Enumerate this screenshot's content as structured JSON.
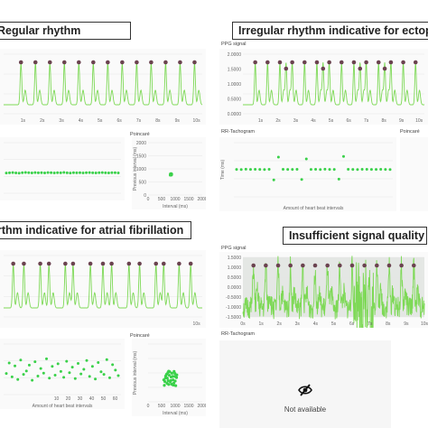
{
  "panels": {
    "q1": {
      "title": "Regular rhythm",
      "poincare_label": "Poincaré"
    },
    "q2": {
      "title": "Irregular rhythm indicative for ectop",
      "ppg_label": "PPG signal",
      "rr_label": "RR-Tachogram",
      "poincare_label": "Poincaré"
    },
    "q3": {
      "title": "rthm indicative for atrial fibrillation",
      "poincare_label": "Poincaré"
    },
    "q4": {
      "title": "Insufficient signal quality",
      "ppg_label": "PPG signal",
      "rr_label": "RR-Tachogram",
      "na_text": "Not available"
    }
  },
  "colors": {
    "signal": "#7ed957",
    "signal_dark": "#3fae3a",
    "marker": "#6b4350",
    "point": "#3ad14a",
    "panel_bg": "#fafafa",
    "noisy_bg": "#e4e7e4"
  },
  "icons": {
    "not_available": "eye-slash-icon"
  },
  "chart_data": [
    {
      "type": "line",
      "panel": "q1",
      "role": "ppg",
      "x_ticks": [
        "1s",
        "2s",
        "3s",
        "4s",
        "5s",
        "6s",
        "7s",
        "8s",
        "9s",
        "10s"
      ],
      "y_ticks": [
        "",
        "",
        "",
        ""
      ],
      "beat_times": [
        0.9,
        1.65,
        2.4,
        3.15,
        3.9,
        4.65,
        5.4,
        6.15,
        6.9,
        7.65,
        8.4,
        9.15,
        9.9
      ],
      "xlim": [
        0,
        10.3
      ]
    },
    {
      "type": "scatter",
      "panel": "q1",
      "role": "rr",
      "x_ticks": [],
      "y_ticks": [],
      "values": [
        740,
        745,
        750,
        742,
        738,
        748,
        752,
        746,
        741,
        749,
        744,
        747,
        743,
        750,
        746,
        742,
        748,
        745,
        751,
        744,
        739,
        747,
        745,
        748,
        743,
        746,
        750,
        744,
        742,
        747,
        749,
        745,
        741,
        748,
        746,
        743
      ],
      "ylim": [
        300,
        1400
      ]
    },
    {
      "type": "scatter",
      "panel": "q1",
      "role": "poincare",
      "x_ticks": [
        "0",
        "500",
        "1000",
        "1500",
        "2000"
      ],
      "y_ticks": [
        "2000",
        "1500",
        "1000",
        "500",
        "0"
      ],
      "xlabel": "Interval (ms)",
      "ylabel": "Previous interval (ms)",
      "points": [
        [
          820,
          760
        ],
        [
          840,
          790
        ],
        [
          860,
          770
        ],
        [
          830,
          810
        ],
        [
          850,
          780
        ],
        [
          870,
          800
        ],
        [
          845,
          760
        ],
        [
          825,
          795
        ],
        [
          855,
          815
        ],
        [
          865,
          775
        ],
        [
          835,
          770
        ],
        [
          850,
          805
        ]
      ],
      "xlim": [
        0,
        2000
      ],
      "ylim": [
        0,
        2000
      ]
    },
    {
      "type": "line",
      "panel": "q2",
      "role": "ppg",
      "x_ticks": [
        "1s",
        "2s",
        "3s",
        "4s",
        "5s",
        "6s",
        "7s",
        "8s",
        "9s",
        "10s"
      ],
      "y_ticks": [
        "2.0000",
        "1.5000",
        "1.0000",
        "0.5000",
        "0.0000"
      ],
      "beat_times": [
        0.7,
        1.4,
        2.1,
        2.8,
        3.5,
        4.2,
        4.9,
        5.6,
        6.3,
        7.0,
        7.7,
        8.4,
        9.1,
        9.8
      ],
      "ectopic_times": [
        2.45,
        4.55,
        6.65,
        8.05
      ],
      "xlim": [
        0,
        10.3
      ]
    },
    {
      "type": "scatter",
      "panel": "q2",
      "role": "rr",
      "x_ticks": [],
      "y_ticks": [
        "",
        "",
        "",
        ""
      ],
      "xlabel": "Amount of heart beat intervals",
      "ylabel": "Time (ms)",
      "values": [
        760,
        755,
        765,
        758,
        762,
        760,
        757,
        764,
        470,
        1100,
        762,
        758,
        760,
        763,
        480,
        1050,
        759,
        761,
        757,
        765,
        760,
        758,
        490,
        1120,
        762,
        760,
        756,
        764,
        761,
        759,
        758,
        763,
        760,
        757
      ],
      "ylim": [
        0,
        1500
      ]
    },
    {
      "type": "line",
      "panel": "q3",
      "role": "ppg",
      "x_ticks": [
        "",
        "",
        "",
        "",
        "",
        "",
        "",
        "",
        "",
        "10s"
      ],
      "y_ticks": [
        "",
        "",
        "",
        ""
      ],
      "beat_times": [
        0.5,
        1.05,
        1.9,
        2.35,
        3.2,
        3.6,
        4.5,
        5.15,
        5.6,
        6.5,
        7.05,
        7.9,
        8.3,
        9.1,
        9.7
      ],
      "xlim": [
        0,
        10.3
      ]
    },
    {
      "type": "scatter",
      "panel": "q3",
      "role": "rr",
      "x_ticks": [
        "",
        "",
        "",
        "",
        "10",
        "20",
        "30",
        "40",
        "50",
        "60"
      ],
      "y_ticks": [],
      "xlabel": "Amount of heart beat intervals",
      "values": [
        700,
        950,
        620,
        880,
        560,
        1020,
        680,
        760,
        900,
        540,
        980,
        640,
        820,
        710,
        1050,
        590,
        870,
        660,
        930,
        750,
        610,
        990,
        720,
        850,
        580,
        940,
        690,
        800,
        1010,
        630,
        870,
        570,
        960,
        740,
        680,
        1030,
        600,
        910,
        780,
        650
      ],
      "ylim": [
        200,
        1400
      ]
    },
    {
      "type": "scatter",
      "panel": "q3",
      "role": "poincare",
      "x_ticks": [
        "0",
        "500",
        "1000",
        "1500",
        "2000"
      ],
      "y_ticks": [
        "",
        "",
        "",
        "",
        ""
      ],
      "xlabel": "Interval (ms)",
      "ylabel": "Previous interval (ms)",
      "points": [
        [
          620,
          700
        ],
        [
          680,
          950
        ],
        [
          710,
          820
        ],
        [
          760,
          600
        ],
        [
          800,
          1040
        ],
        [
          840,
          740
        ],
        [
          900,
          880
        ],
        [
          950,
          650
        ],
        [
          990,
          980
        ],
        [
          1020,
          560
        ],
        [
          650,
          890
        ],
        [
          730,
          1010
        ],
        [
          870,
          610
        ],
        [
          920,
          760
        ],
        [
          1050,
          840
        ],
        [
          600,
          570
        ],
        [
          780,
          920
        ],
        [
          820,
          690
        ],
        [
          960,
          1050
        ],
        [
          700,
          640
        ],
        [
          1000,
          720
        ],
        [
          880,
          990
        ],
        [
          640,
          820
        ],
        [
          760,
          1060
        ],
        [
          930,
          580
        ],
        [
          1060,
          930
        ],
        [
          580,
          760
        ],
        [
          850,
          860
        ],
        [
          740,
          730
        ],
        [
          980,
          880
        ]
      ],
      "xlim": [
        0,
        2000
      ],
      "ylim": [
        0,
        2000
      ]
    },
    {
      "type": "line",
      "panel": "q4",
      "role": "ppg",
      "x_ticks": [
        "0s",
        "1s",
        "2s",
        "3s",
        "4s",
        "5s",
        "6s",
        "7s",
        "8s",
        "9s",
        "10s"
      ],
      "y_ticks": [
        "1.5000",
        "1.0000",
        "0.5000",
        "0.0000",
        "-0.5000",
        "-1.0000",
        "-1.5000"
      ],
      "beat_times": [
        0.6,
        1.3,
        2.0,
        2.7,
        3.4,
        4.1,
        4.8,
        5.5,
        6.2,
        6.9,
        7.6,
        8.3,
        9.0,
        9.7
      ],
      "xlim": [
        0,
        10.3
      ]
    }
  ]
}
